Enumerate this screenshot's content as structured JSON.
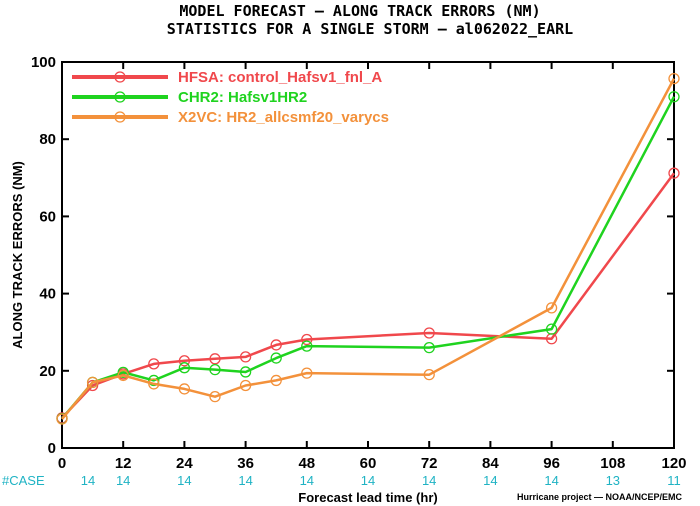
{
  "title": {
    "line1": "MODEL FORECAST — ALONG TRACK ERRORS (NM)",
    "line2": "STATISTICS FOR A SINGLE STORM — al062022_EARL"
  },
  "credit": "Hurricane project — NOAA/NCEP/EMC",
  "chart_data": {
    "type": "line",
    "title": "MODEL FORECAST — ALONG TRACK ERRORS (NM)",
    "subtitle": "STATISTICS FOR A SINGLE STORM — al062022_EARL",
    "xlabel": "Forecast lead time (hr)",
    "ylabel": "ALONG TRACK ERRORS (NM)",
    "xlim": [
      0,
      120
    ],
    "ylim": [
      0,
      100
    ],
    "xticks": [
      0,
      12,
      24,
      36,
      48,
      60,
      72,
      84,
      96,
      108,
      120
    ],
    "yticks": [
      0,
      20,
      40,
      60,
      80,
      100
    ],
    "grid": false,
    "legend_position": "top-left",
    "case_label": "#CASE",
    "cases": {
      "x": [
        0,
        12,
        24,
        36,
        48,
        60,
        72,
        84,
        96,
        108,
        120
      ],
      "values": [
        "14",
        "14",
        "14",
        "14",
        "14",
        "14",
        "14",
        "14",
        "14",
        "13",
        "11"
      ]
    },
    "series": [
      {
        "name": "HFSA: control_Hafsv1_fnl_A",
        "color": "#f0484c",
        "x": [
          0,
          6,
          12,
          18,
          24,
          30,
          36,
          42,
          48,
          72,
          96,
          120
        ],
        "values": [
          7.8,
          16.2,
          19.2,
          21.8,
          22.6,
          23.1,
          23.6,
          26.7,
          28.1,
          29.8,
          28.3,
          71.2
        ]
      },
      {
        "name": "CHR2: Hafsv1HR2",
        "color": "#1fd31f",
        "x": [
          0,
          6,
          12,
          18,
          24,
          30,
          36,
          42,
          48,
          72,
          96,
          120
        ],
        "values": [
          7.6,
          17.0,
          19.6,
          17.5,
          20.8,
          20.3,
          19.7,
          23.3,
          26.4,
          26.0,
          30.8,
          91.0
        ]
      },
      {
        "name": "X2VC: HR2_allcsmf20_varycs",
        "color": "#f3913b",
        "x": [
          0,
          6,
          12,
          18,
          24,
          30,
          36,
          42,
          48,
          72,
          96,
          120
        ],
        "values": [
          7.5,
          17.0,
          18.8,
          16.6,
          15.3,
          13.3,
          16.2,
          17.5,
          19.4,
          19.0,
          36.3,
          95.7
        ]
      }
    ]
  }
}
